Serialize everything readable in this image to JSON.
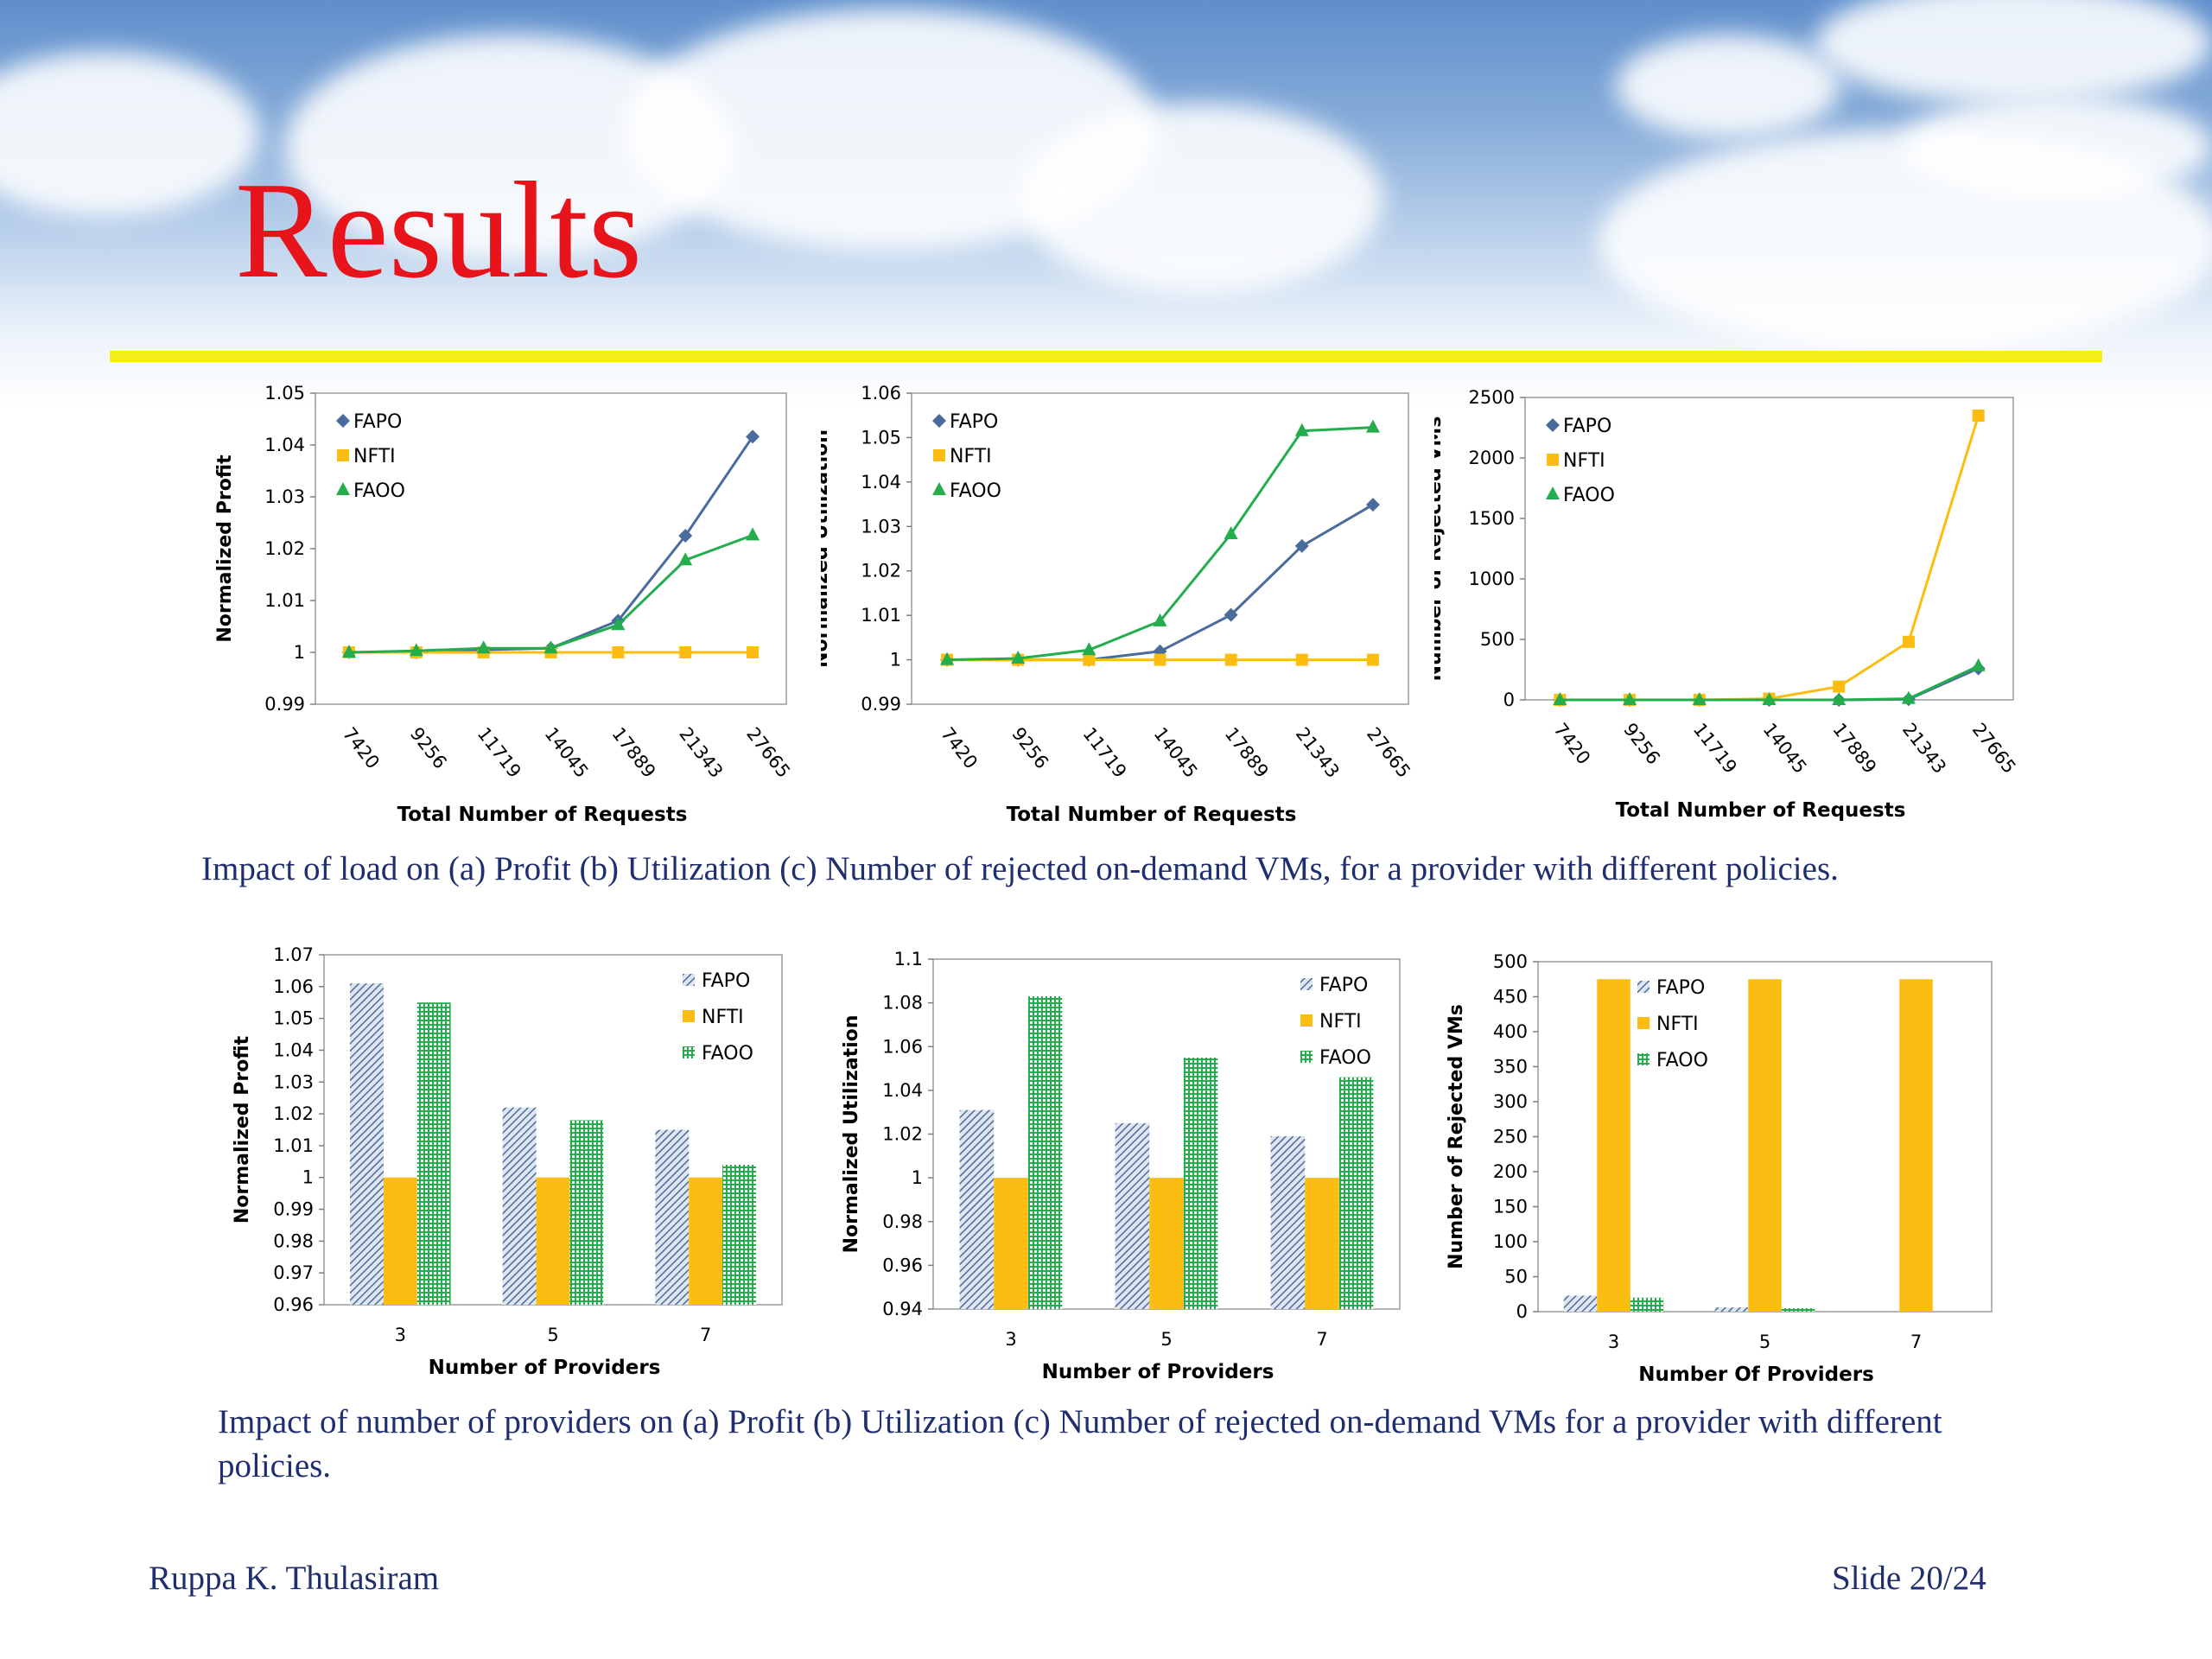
{
  "slide": {
    "title": "Results",
    "caption_top": "Impact of  load on (a) Profit (b) Utilization (c) Number of rejected on-demand VMs, for a provider with different policies.",
    "caption_bottom": "Impact of number of providers on (a) Profit (b) Utilization (c) Number of rejected on-demand VMs for a provider with different policies.",
    "footer_left": "Ruppa K. Thulasiram",
    "footer_right": "Slide 20/24"
  },
  "colors": {
    "FAPO": "#4a6b9d",
    "NFTI": "#fbbd11",
    "FAOO": "#23ad4d",
    "title": "#e8141b",
    "rule": "#f5ed1a",
    "caption": "#1f2e6e"
  },
  "chart_data": [
    {
      "id": "profit-vs-load",
      "type": "line",
      "xlabel": "Total Number of Requests",
      "ylabel": "Normalized Profit",
      "categories": [
        "7420",
        "9256",
        "11719",
        "14045",
        "17889",
        "21343",
        "27665"
      ],
      "ylim": [
        0.99,
        1.05
      ],
      "yticks": [
        0.99,
        1,
        1.01,
        1.02,
        1.03,
        1.04,
        1.05
      ],
      "ytick_labels": [
        "0.99",
        "1",
        "1.01",
        "1.02",
        "1.03",
        "1.04",
        "1.05"
      ],
      "legend_position": "top-left",
      "series": [
        {
          "name": "FAPO",
          "marker": "diamond",
          "values": [
            1.0,
            1.0,
            1.0005,
            1.0008,
            1.0061,
            1.0225,
            1.0416
          ]
        },
        {
          "name": "NFTI",
          "marker": "square",
          "values": [
            1.0,
            1.0,
            1.0,
            1.0,
            1.0,
            1.0,
            1.0
          ]
        },
        {
          "name": "FAOO",
          "marker": "triangle",
          "values": [
            1.0,
            1.0003,
            1.0008,
            1.0008,
            1.0053,
            1.0178,
            1.0226
          ]
        }
      ]
    },
    {
      "id": "utilization-vs-load",
      "type": "line",
      "xlabel": "Total Number of Requests",
      "ylabel": "Normalized Utilization",
      "categories": [
        "7420",
        "9256",
        "11719",
        "14045",
        "17889",
        "21343",
        "27665"
      ],
      "ylim": [
        0.99,
        1.06
      ],
      "yticks": [
        0.99,
        1,
        1.01,
        1.02,
        1.03,
        1.04,
        1.05,
        1.06
      ],
      "ytick_labels": [
        "0.99",
        "1",
        "1.01",
        "1.02",
        "1.03",
        "1.04",
        "1.05",
        "1.06"
      ],
      "legend_position": "top-left",
      "series": [
        {
          "name": "FAPO",
          "marker": "diamond",
          "values": [
            1.0,
            1.0,
            1.0,
            1.0019,
            1.0101,
            1.0256,
            1.0349
          ]
        },
        {
          "name": "NFTI",
          "marker": "square",
          "values": [
            1.0,
            1.0,
            1.0,
            1.0,
            1.0,
            1.0,
            1.0
          ]
        },
        {
          "name": "FAOO",
          "marker": "triangle",
          "values": [
            1.0,
            1.0003,
            1.0022,
            1.0087,
            1.0283,
            1.0515,
            1.0523
          ]
        }
      ]
    },
    {
      "id": "rejected-vs-load",
      "type": "line",
      "xlabel": "Total Number of Requests",
      "ylabel": "Number of Rejected VMs",
      "categories": [
        "7420",
        "9256",
        "11719",
        "14045",
        "17889",
        "21343",
        "27665"
      ],
      "ylim": [
        0,
        2500
      ],
      "yticks": [
        0,
        500,
        1000,
        1500,
        2000,
        2500
      ],
      "ytick_labels": [
        "0",
        "500",
        "1000",
        "1500",
        "2000",
        "2500"
      ],
      "legend_position": "top-left",
      "series": [
        {
          "name": "FAPO",
          "marker": "diamond",
          "values": [
            0,
            0,
            0,
            0,
            0,
            5,
            260
          ]
        },
        {
          "name": "NFTI",
          "marker": "square",
          "values": [
            0,
            0,
            0,
            10,
            110,
            480,
            2350
          ]
        },
        {
          "name": "FAOO",
          "marker": "triangle",
          "values": [
            0,
            0,
            0,
            0,
            0,
            10,
            280
          ]
        }
      ]
    },
    {
      "id": "profit-vs-providers",
      "type": "bar",
      "xlabel": "Number of Providers",
      "ylabel": "Normalized Profit",
      "categories": [
        "3",
        "5",
        "7"
      ],
      "ylim": [
        0.96,
        1.07
      ],
      "yticks": [
        0.96,
        0.97,
        0.98,
        0.99,
        1,
        1.01,
        1.02,
        1.03,
        1.04,
        1.05,
        1.06,
        1.07
      ],
      "ytick_labels": [
        "0.96",
        "0.97",
        "0.98",
        "0.99",
        "1",
        "1.01",
        "1.02",
        "1.03",
        "1.04",
        "1.05",
        "1.06",
        "1.07"
      ],
      "legend_position": "top-right",
      "series": [
        {
          "name": "FAPO",
          "pattern": "hatch",
          "values": [
            1.061,
            1.022,
            1.015
          ]
        },
        {
          "name": "NFTI",
          "pattern": "solid",
          "values": [
            1.0,
            1.0,
            1.0
          ]
        },
        {
          "name": "FAOO",
          "pattern": "grid",
          "values": [
            1.055,
            1.018,
            1.004
          ]
        }
      ]
    },
    {
      "id": "utilization-vs-providers",
      "type": "bar",
      "xlabel": "Number of Providers",
      "ylabel": "Normalized Utilization",
      "categories": [
        "3",
        "5",
        "7"
      ],
      "ylim": [
        0.94,
        1.1
      ],
      "yticks": [
        0.94,
        0.96,
        0.98,
        1,
        1.02,
        1.04,
        1.06,
        1.08,
        1.1
      ],
      "ytick_labels": [
        "0.94",
        "0.96",
        "0.98",
        "1",
        "1.02",
        "1.04",
        "1.06",
        "1.08",
        "1.1"
      ],
      "legend_position": "top-right",
      "series": [
        {
          "name": "FAPO",
          "pattern": "hatch",
          "values": [
            1.031,
            1.025,
            1.019
          ]
        },
        {
          "name": "NFTI",
          "pattern": "solid",
          "values": [
            1.0,
            1.0,
            1.0
          ]
        },
        {
          "name": "FAOO",
          "pattern": "grid",
          "values": [
            1.083,
            1.055,
            1.046
          ]
        }
      ]
    },
    {
      "id": "rejected-vs-providers",
      "type": "bar",
      "xlabel": "Number Of Providers",
      "ylabel": "Number of Rejected VMs",
      "categories": [
        "3",
        "5",
        "7"
      ],
      "ylim": [
        0,
        500
      ],
      "yticks": [
        0,
        50,
        100,
        150,
        200,
        250,
        300,
        350,
        400,
        450,
        500
      ],
      "ytick_labels": [
        "0",
        "50",
        "100",
        "150",
        "200",
        "250",
        "300",
        "350",
        "400",
        "450",
        "500"
      ],
      "legend_position": "top-left",
      "series": [
        {
          "name": "FAPO",
          "pattern": "hatch",
          "values": [
            23,
            6,
            0
          ]
        },
        {
          "name": "NFTI",
          "pattern": "solid",
          "values": [
            475,
            475,
            475
          ]
        },
        {
          "name": "FAOO",
          "pattern": "grid",
          "values": [
            20,
            5,
            0
          ]
        }
      ]
    }
  ]
}
